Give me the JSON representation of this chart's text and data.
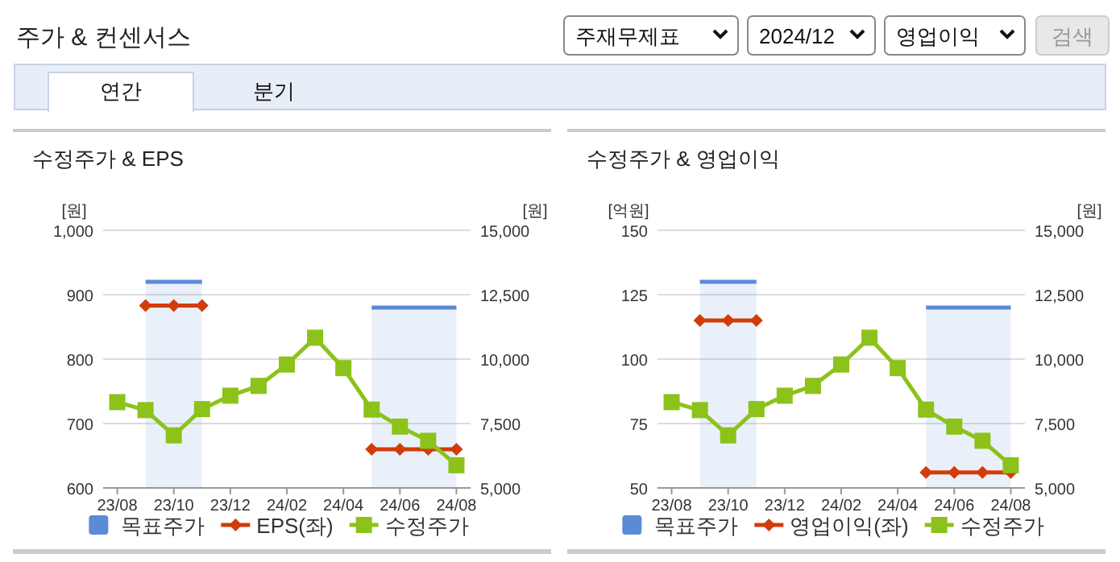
{
  "chart_data": [
    {
      "type": "line",
      "title": "수정주가 & EPS",
      "ylabel": "[원]",
      "y2label": "[원]",
      "annotations": [
        "주가 & 컨센서스",
        "주재무제표",
        "2024/12",
        "영업이익",
        "검색",
        "연간",
        "분기"
      ],
      "categories": [
        "23/08",
        null,
        "23/10",
        null,
        "23/12",
        null,
        "24/02",
        null,
        "24/04",
        null,
        "24/06",
        null,
        "24/08"
      ],
      "series": [
        {
          "name": "목표주가",
          "type": "area",
          "axis": "y2",
          "color": "#5b8bd6",
          "marker": "none",
          "values": [
            null,
            13000,
            13000,
            13000,
            null,
            null,
            null,
            null,
            null,
            12000,
            12000,
            12000,
            12000
          ]
        },
        {
          "name": "EPS(좌)",
          "color": "#d23c0a",
          "marker": "diamond",
          "values": [
            null,
            883,
            883,
            883,
            null,
            null,
            null,
            null,
            null,
            660,
            660,
            660,
            660
          ]
        },
        {
          "name": "수정주가",
          "type": "line",
          "axis": "y2",
          "color": "#8cc21a",
          "marker": "square",
          "values": [
            8330,
            8020,
            7040,
            8060,
            8580,
            8960,
            9790,
            10830,
            9650,
            8040,
            7380,
            6830,
            5880
          ]
        }
      ],
      "ylim": [
        600,
        1000
      ],
      "yticks": [
        600,
        700,
        800,
        900,
        {
          "value": 1000,
          "label": "1,000"
        }
      ],
      "y2lim": [
        5000,
        15000
      ],
      "y2ticks": [
        {
          "value": 5000,
          "label": "5,000"
        },
        {
          "value": 7500,
          "label": "7,500"
        },
        {
          "value": 10000,
          "label": "10,000"
        },
        {
          "value": 12500,
          "label": "12,500"
        },
        {
          "value": 15000,
          "label": "15,000"
        }
      ],
      "grid": "y",
      "legend": "bottom"
    },
    {
      "type": "line",
      "title": "수정주가 & 영업이익",
      "ylabel": "[억원]",
      "y2label": "[원]",
      "categories": [
        "23/08",
        null,
        "23/10",
        null,
        "23/12",
        null,
        "24/02",
        null,
        "24/04",
        null,
        "24/06",
        null,
        "24/08"
      ],
      "series": [
        {
          "name": "목표주가",
          "type": "area",
          "axis": "y2",
          "color": "#5b8bd6",
          "marker": "none",
          "values": [
            null,
            13000,
            13000,
            13000,
            null,
            null,
            null,
            null,
            null,
            12000,
            12000,
            12000,
            12000
          ]
        },
        {
          "name": "영업이익(좌)",
          "color": "#d23c0a",
          "marker": "diamond",
          "values": [
            null,
            115,
            115,
            115,
            null,
            null,
            null,
            null,
            null,
            56,
            56,
            56,
            56
          ]
        },
        {
          "name": "수정주가",
          "type": "line",
          "axis": "y2",
          "color": "#8cc21a",
          "marker": "square",
          "values": [
            8330,
            8020,
            7040,
            8060,
            8580,
            8960,
            9790,
            10830,
            9650,
            8040,
            7380,
            6830,
            5880
          ]
        }
      ],
      "ylim": [
        50,
        150
      ],
      "yticks": [
        50,
        75,
        100,
        125,
        150
      ],
      "y2lim": [
        5000,
        15000
      ],
      "y2ticks": [
        {
          "value": 5000,
          "label": "5,000"
        },
        {
          "value": 7500,
          "label": "7,500"
        },
        {
          "value": 10000,
          "label": "10,000"
        },
        {
          "value": 12500,
          "label": "12,500"
        },
        {
          "value": 15000,
          "label": "15,000"
        }
      ],
      "grid": "y",
      "legend": "bottom"
    }
  ]
}
